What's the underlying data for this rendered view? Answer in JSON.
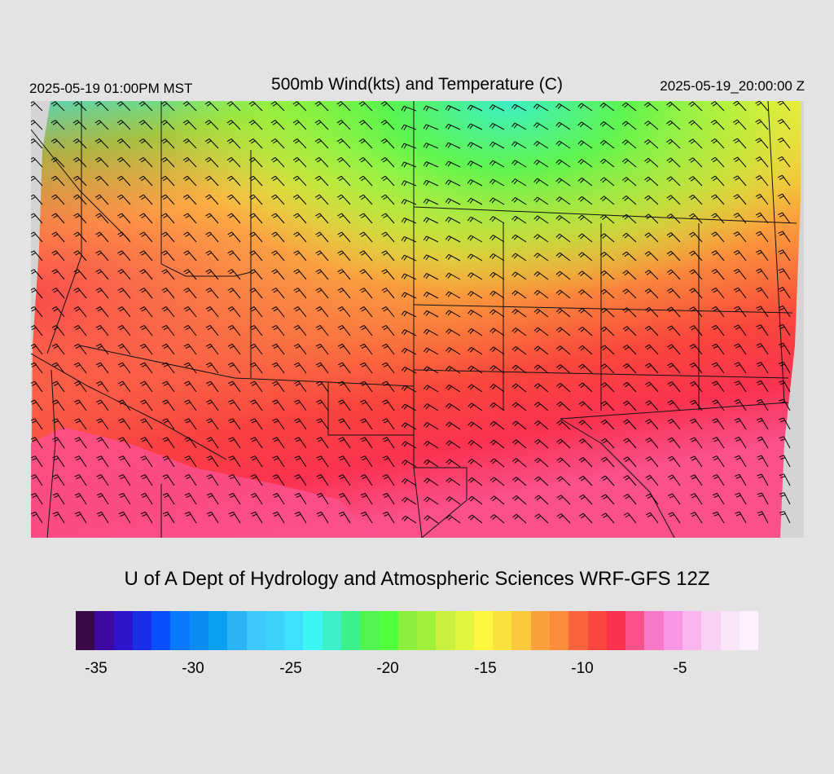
{
  "header": {
    "local_time": "2025-05-19 01:00PM MST",
    "title": "500mb Wind(kts) and Temperature (C)",
    "utc_time": "2025-05-19_20:00:00 Z"
  },
  "credit": "U of A Dept of Hydrology and Atmospheric Sciences WRF-GFS 12Z",
  "colorbar": {
    "colors": [
      "#3a0848",
      "#3c0aa0",
      "#2e14cc",
      "#1a2ee8",
      "#0a50ff",
      "#0a78ff",
      "#0a8cf5",
      "#0aa0f0",
      "#28b4f5",
      "#3cc8fa",
      "#3cd2fa",
      "#3ce1ff",
      "#3cf5f5",
      "#3cf0c8",
      "#3cf08c",
      "#50f550",
      "#50ff3c",
      "#8cf03c",
      "#a0f03c",
      "#c8f03c",
      "#e1f53c",
      "#fff53c",
      "#fae13c",
      "#fac83c",
      "#faa03c",
      "#fa8c3c",
      "#fa643c",
      "#fa463c",
      "#fa3250",
      "#fa508c",
      "#fa78c8",
      "#fa96e6",
      "#fab4f0",
      "#fad2f5",
      "#fae6fa",
      "#fff0ff"
    ],
    "tick_labels": [
      "-35",
      "-30",
      "-25",
      "-20",
      "-15",
      "-10",
      "-5"
    ]
  }
}
